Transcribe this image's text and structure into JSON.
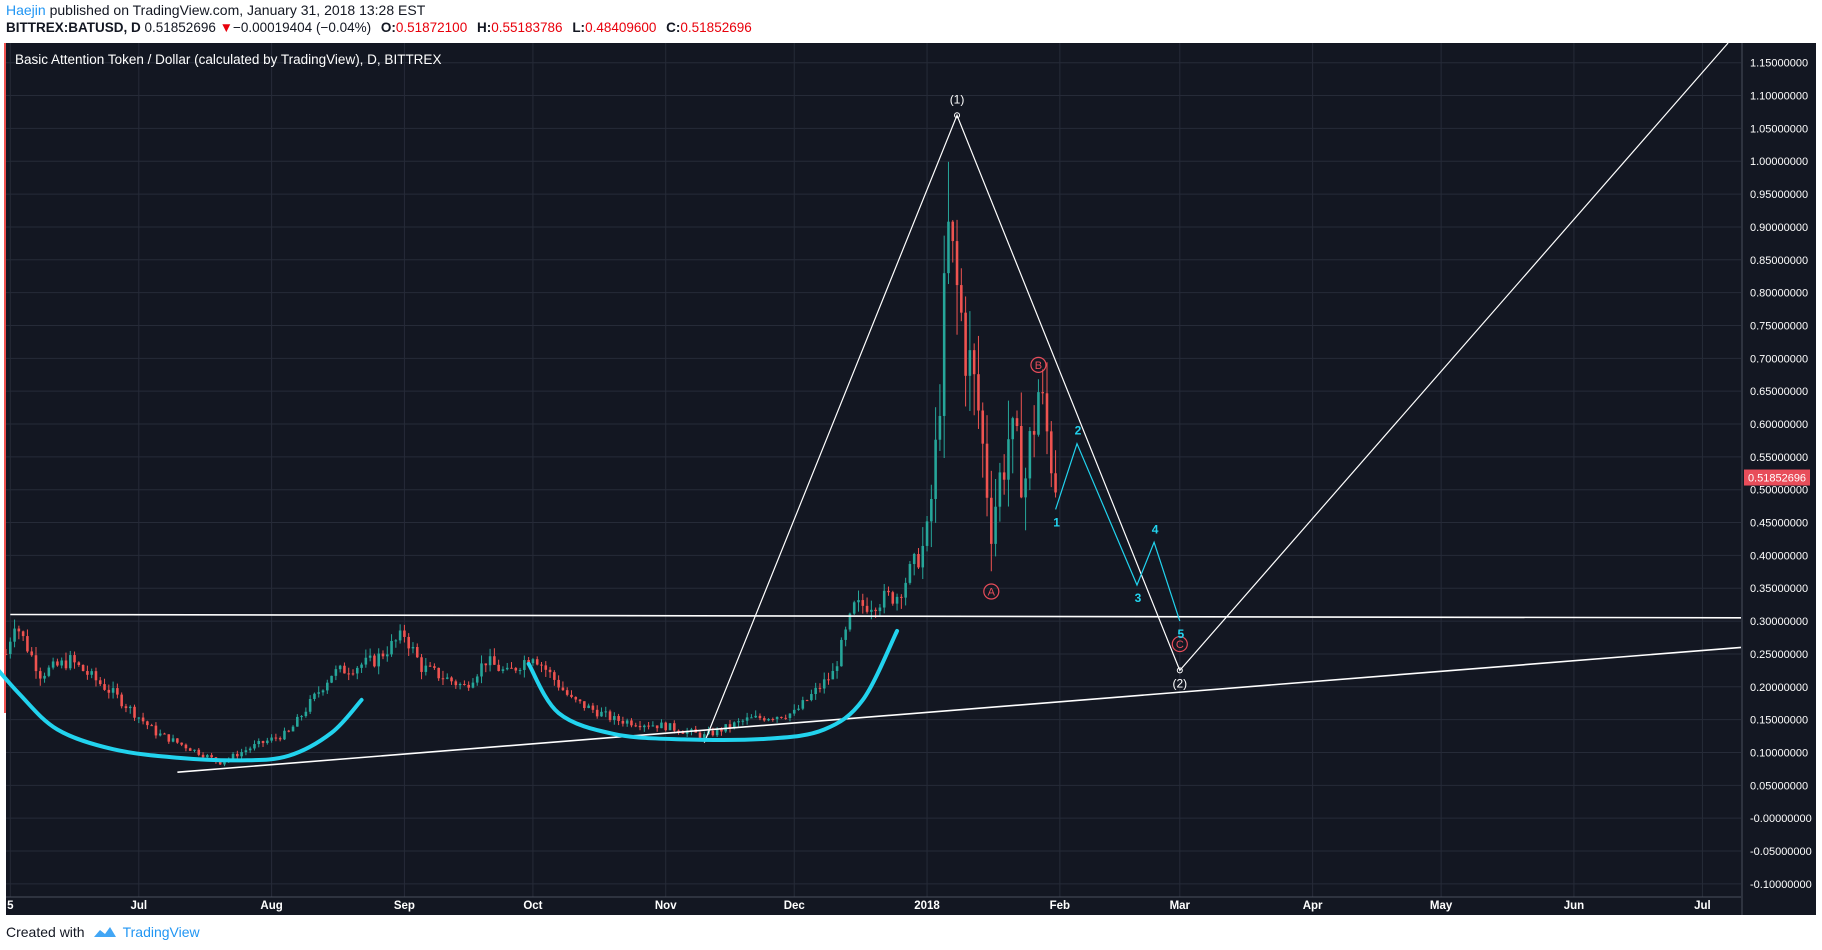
{
  "header": {
    "author": "Haejin",
    "published_text": "published on TradingView.com, January 31, 2018 13:28 EST",
    "symbol": "BITTREX:BATUSD, D",
    "last_price": "0.51852696",
    "change_arrow": "▼",
    "change": "−0.00019404 (−0.04%)",
    "open_label": "O:",
    "open": "0.51872100",
    "high_label": "H:",
    "high": "0.55183786",
    "low_label": "L:",
    "low": "0.48409600",
    "close_label": "C:",
    "close": "0.51852696"
  },
  "footer": {
    "created_with": "Created with",
    "brand": "TradingView"
  },
  "colors": {
    "background": "#131722",
    "grid": "#262b38",
    "up": "#26a69a",
    "down": "#ef5350",
    "cyan": "#22d3ee",
    "white_lines": "#ffffff",
    "price_tag": "#e84d5a",
    "wave_abc": "#e84d5a"
  },
  "chart_data": {
    "type": "candlestick",
    "title": "Basic Attention Token / Dollar (calculated by TradingView), D, BITTREX",
    "x_axis": {
      "tick_labels": [
        "5",
        "Jul",
        "Aug",
        "Sep",
        "Oct",
        "Nov",
        "Dec",
        "2018",
        "Feb",
        "Mar",
        "Apr",
        "May",
        "Jun",
        "Jul"
      ],
      "tick_dates": [
        "2017-06-01",
        "2017-07-01",
        "2017-08-01",
        "2017-09-01",
        "2017-10-01",
        "2017-11-01",
        "2017-12-01",
        "2018-01-01",
        "2018-02-01",
        "2018-03-01",
        "2018-04-01",
        "2018-05-01",
        "2018-06-01",
        "2018-07-01"
      ],
      "range": [
        "2017-05-31",
        "2018-07-10"
      ]
    },
    "y_axis": {
      "tick_labels": [
        "1.15000000",
        "1.10000000",
        "1.05000000",
        "1.00000000",
        "0.95000000",
        "0.90000000",
        "0.85000000",
        "0.80000000",
        "0.75000000",
        "0.70000000",
        "0.65000000",
        "0.60000000",
        "0.55000000",
        "0.50000000",
        "0.45000000",
        "0.40000000",
        "0.35000000",
        "0.30000000",
        "0.25000000",
        "0.20000000",
        "0.15000000",
        "0.10000000",
        "0.05000000",
        "-0.00000000",
        "-0.05000000",
        "-0.10000000"
      ],
      "range": [
        -0.12,
        1.18
      ]
    },
    "last_price_label": "0.51852696",
    "last_price": 0.51852696,
    "price_path": [
      [
        "2017-05-31",
        0.25
      ],
      [
        "2017-06-02",
        0.3
      ],
      [
        "2017-06-08",
        0.22
      ],
      [
        "2017-06-15",
        0.24
      ],
      [
        "2017-06-25",
        0.19
      ],
      [
        "2017-07-05",
        0.13
      ],
      [
        "2017-07-15",
        0.1
      ],
      [
        "2017-07-20",
        0.085
      ],
      [
        "2017-07-28",
        0.11
      ],
      [
        "2017-08-05",
        0.13
      ],
      [
        "2017-08-15",
        0.22
      ],
      [
        "2017-08-25",
        0.24
      ],
      [
        "2017-09-01",
        0.28
      ],
      [
        "2017-09-05",
        0.23
      ],
      [
        "2017-09-15",
        0.2
      ],
      [
        "2017-09-20",
        0.24
      ],
      [
        "2017-09-25",
        0.22
      ],
      [
        "2017-10-01",
        0.25
      ],
      [
        "2017-10-10",
        0.18
      ],
      [
        "2017-10-20",
        0.15
      ],
      [
        "2017-11-01",
        0.14
      ],
      [
        "2017-11-10",
        0.125
      ],
      [
        "2017-11-20",
        0.15
      ],
      [
        "2017-12-01",
        0.16
      ],
      [
        "2017-12-10",
        0.22
      ],
      [
        "2017-12-15",
        0.32
      ],
      [
        "2017-12-25",
        0.34
      ],
      [
        "2018-01-01",
        0.42
      ],
      [
        "2018-01-03",
        0.55
      ],
      [
        "2018-01-06",
        0.88
      ],
      [
        "2018-01-08",
        0.8
      ],
      [
        "2018-01-10",
        0.72
      ],
      [
        "2018-01-13",
        0.62
      ],
      [
        "2018-01-16",
        0.45
      ],
      [
        "2018-01-20",
        0.58
      ],
      [
        "2018-01-24",
        0.52
      ],
      [
        "2018-01-27",
        0.65
      ],
      [
        "2018-01-31",
        0.5185
      ]
    ],
    "annotations": {
      "wave_labels_white": [
        {
          "text": "(1)",
          "date": "2018-01-08",
          "price": 1.07
        },
        {
          "text": "(2)",
          "date": "2018-03-01",
          "price": 0.225
        }
      ],
      "wave_labels_red": [
        {
          "text": "A",
          "date": "2018-01-16",
          "price": 0.345
        },
        {
          "text": "B",
          "date": "2018-01-27",
          "price": 0.69
        },
        {
          "text": "C",
          "date": "2018-03-01",
          "price": 0.265
        }
      ],
      "wave_labels_cyan": [
        {
          "text": "1",
          "date": "2018-01-31",
          "price": 0.47
        },
        {
          "text": "2",
          "date": "2018-02-05",
          "price": 0.57
        },
        {
          "text": "3",
          "date": "2018-02-19",
          "price": 0.355
        },
        {
          "text": "4",
          "date": "2018-02-23",
          "price": 0.42
        },
        {
          "text": "5",
          "date": "2018-03-01",
          "price": 0.3
        }
      ],
      "white_projection": [
        [
          "2017-11-10",
          0.115
        ],
        [
          "2018-01-08",
          1.07
        ],
        [
          "2018-03-01",
          0.225
        ],
        [
          "2018-07-07",
          1.18
        ]
      ],
      "cyan_projection": [
        [
          "2018-01-31",
          0.47
        ],
        [
          "2018-02-05",
          0.57
        ],
        [
          "2018-02-19",
          0.355
        ],
        [
          "2018-02-23",
          0.42
        ],
        [
          "2018-03-01",
          0.3
        ]
      ],
      "neckline": [
        [
          "2017-06-01",
          0.31
        ],
        [
          "2018-07-10",
          0.305
        ]
      ],
      "trendline": [
        [
          "2017-07-10",
          0.07
        ],
        [
          "2018-07-10",
          0.26
        ]
      ],
      "cup_left": [
        [
          "2017-05-26",
          0.25
        ],
        [
          "2017-06-03",
          0.19
        ],
        [
          "2017-06-12",
          0.135
        ],
        [
          "2017-06-25",
          0.105
        ],
        [
          "2017-07-10",
          0.092
        ],
        [
          "2017-07-25",
          0.088
        ],
        [
          "2017-08-05",
          0.095
        ],
        [
          "2017-08-15",
          0.13
        ],
        [
          "2017-08-22",
          0.18
        ]
      ],
      "cup_right": [
        [
          "2017-09-30",
          0.235
        ],
        [
          "2017-10-07",
          0.16
        ],
        [
          "2017-10-20",
          0.128
        ],
        [
          "2017-11-05",
          0.12
        ],
        [
          "2017-11-25",
          0.121
        ],
        [
          "2017-12-08",
          0.135
        ],
        [
          "2017-12-17",
          0.18
        ],
        [
          "2017-12-25",
          0.285
        ]
      ]
    }
  }
}
